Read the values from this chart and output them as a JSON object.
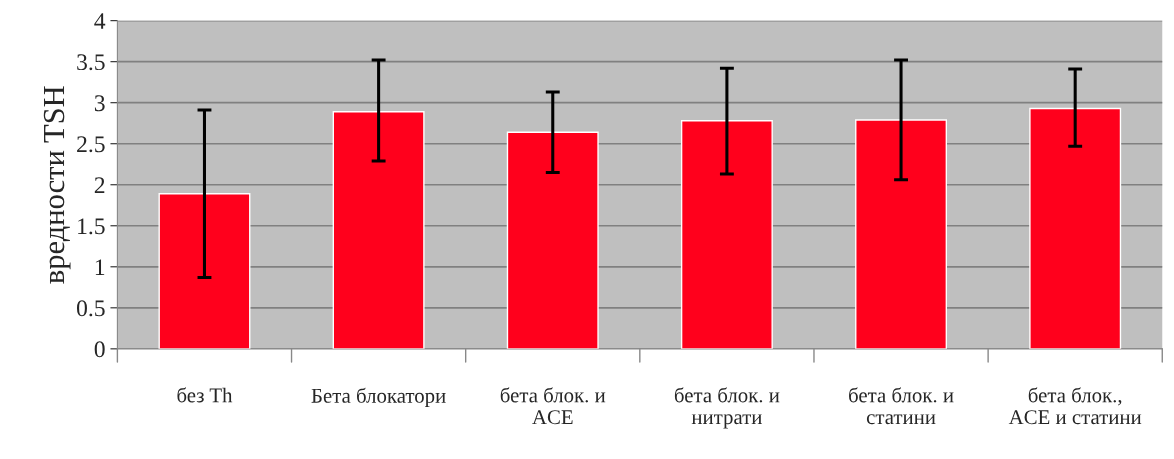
{
  "chart_data": {
    "type": "bar",
    "ylabel": "вредности TSH",
    "categories": [
      "без Th",
      "Бета блокатори",
      "бета блок. и ACE",
      "бета блок. и нитрати",
      "бета блок. и статини",
      "бета блок., ACE и статини"
    ],
    "series": [
      {
        "color": "#ff001c",
        "values": [
          1.89,
          2.89,
          2.64,
          2.78,
          2.79,
          2.93
        ],
        "errors": [
          [
            0.87,
            2.91
          ],
          [
            2.29,
            3.52
          ],
          [
            2.15,
            3.13
          ],
          [
            2.13,
            3.42
          ],
          [
            2.06,
            3.52
          ],
          [
            2.47,
            3.41
          ]
        ]
      }
    ],
    "ylim": [
      0,
      4
    ],
    "yticks": [
      0,
      0.5,
      1,
      1.5,
      2,
      2.5,
      3,
      3.5,
      4
    ],
    "grid": "y"
  }
}
